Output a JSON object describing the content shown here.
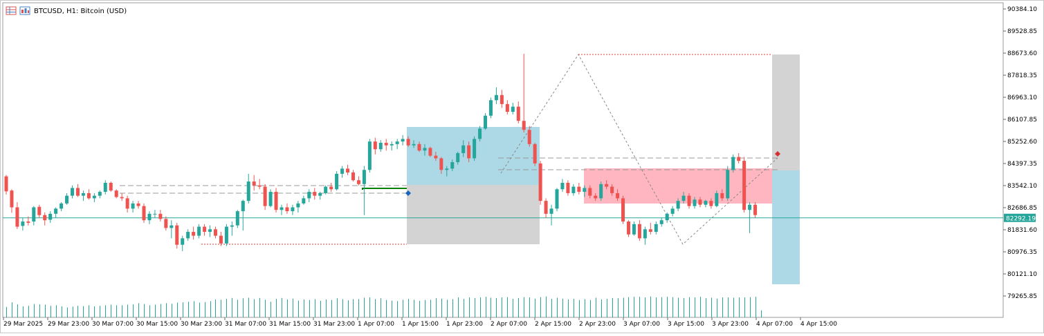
{
  "header": {
    "symbol": "BTCUSD, H1:  Bitcoin (USD)",
    "icons": [
      "table-icon",
      "chart-icon"
    ]
  },
  "colors": {
    "bull": "#26a69a",
    "bear": "#ef5350",
    "volume": "#26a69a",
    "price_line": "#26a69a",
    "blue_zone": "#add8e6",
    "grey_zone": "#d3d3d3",
    "pink_zone": "#ffb6c1",
    "red_dotted": "#e53935",
    "structure_line": "#888888",
    "green_segment": "#008000"
  },
  "chart_data": {
    "type": "candlestick",
    "symbol": "BTCUSD",
    "timeframe": "H1",
    "ylim": [
      78838,
      90811
    ],
    "y_ticks": [
      "90384.10",
      "89528.85",
      "88673.60",
      "87818.35",
      "86963.10",
      "86107.85",
      "85252.60",
      "84397.35",
      "83542.10",
      "82686.85",
      "81831.60",
      "80976.35",
      "80121.10",
      "79265.85"
    ],
    "x_ticks": [
      "29 Mar 2025",
      "29 Mar 23:00",
      "30 Mar 07:00",
      "30 Mar 15:00",
      "30 Mar 23:00",
      "31 Mar 07:00",
      "31 Mar 15:00",
      "31 Mar 23:00",
      "1 Apr 07:00",
      "1 Apr 15:00",
      "1 Apr 23:00",
      "2 Apr 07:00",
      "2 Apr 15:00",
      "2 Apr 23:00",
      "3 Apr 07:00",
      "3 Apr 15:00",
      "3 Apr 23:00",
      "4 Apr 07:00",
      "4 Apr 15:00"
    ],
    "current_price": "82292.19",
    "candles": [
      [
        83900,
        83957,
        83198,
        83319
      ],
      [
        83350,
        83400,
        82488,
        82700
      ],
      [
        82700,
        82900,
        81857,
        81950
      ],
      [
        81980,
        82300,
        81800,
        82150
      ],
      [
        82150,
        82350,
        82000,
        82100
      ],
      [
        82150,
        82750,
        82000,
        82700
      ],
      [
        82720,
        82800,
        82300,
        82400
      ],
      [
        82400,
        82500,
        82000,
        82200
      ],
      [
        82220,
        82550,
        82100,
        82450
      ],
      [
        82450,
        82700,
        82300,
        82650
      ],
      [
        82650,
        82900,
        82550,
        82850
      ],
      [
        82850,
        83250,
        82800,
        83150
      ],
      [
        83150,
        83550,
        83050,
        83450
      ],
      [
        83450,
        83600,
        83100,
        83150
      ],
      [
        83150,
        83350,
        82950,
        83250
      ],
      [
        83250,
        83400,
        83000,
        83050
      ],
      [
        83050,
        83250,
        82900,
        83150
      ],
      [
        83150,
        83350,
        83050,
        83300
      ],
      [
        83300,
        83750,
        83200,
        83650
      ],
      [
        83650,
        83700,
        83300,
        83350
      ],
      [
        83350,
        83400,
        83050,
        83100
      ],
      [
        83100,
        83250,
        82950,
        83050
      ],
      [
        83050,
        83150,
        82500,
        82650
      ],
      [
        82650,
        82950,
        82500,
        82850
      ],
      [
        82850,
        82950,
        82650,
        82750
      ],
      [
        82750,
        82850,
        82100,
        82200
      ],
      [
        82200,
        82550,
        82050,
        82450
      ],
      [
        82450,
        82600,
        82300,
        82450
      ],
      [
        82450,
        82600,
        82150,
        82250
      ],
      [
        82250,
        82350,
        81800,
        81900
      ],
      [
        81900,
        82200,
        81500,
        82000
      ],
      [
        82000,
        82100,
        81100,
        81250
      ],
      [
        81250,
        81600,
        81000,
        81500
      ],
      [
        81500,
        81850,
        81400,
        81750
      ],
      [
        81750,
        81950,
        81450,
        81600
      ],
      [
        81600,
        82050,
        81500,
        81950
      ],
      [
        81950,
        82050,
        81600,
        81750
      ],
      [
        81750,
        82000,
        81550,
        81850
      ],
      [
        81850,
        81950,
        81500,
        81600
      ],
      [
        81600,
        81750,
        81200,
        81300
      ],
      [
        81300,
        82050,
        81200,
        81950
      ],
      [
        81950,
        82150,
        81600,
        82000
      ],
      [
        82000,
        82600,
        81900,
        82550
      ],
      [
        82550,
        83000,
        81800,
        82950
      ],
      [
        82950,
        84000,
        82850,
        83700
      ],
      [
        83700,
        83950,
        83350,
        83550
      ],
      [
        83550,
        83800,
        83400,
        83500
      ],
      [
        83500,
        83600,
        82600,
        82750
      ],
      [
        82750,
        83400,
        82700,
        83300
      ],
      [
        83300,
        83450,
        82500,
        82600
      ],
      [
        82600,
        82800,
        82400,
        82700
      ],
      [
        82700,
        82850,
        82450,
        82550
      ],
      [
        82550,
        82800,
        82400,
        82700
      ],
      [
        82700,
        82950,
        82500,
        82850
      ],
      [
        82850,
        83150,
        82800,
        83050
      ],
      [
        83050,
        83400,
        82900,
        83300
      ],
      [
        83300,
        83450,
        83000,
        83150
      ],
      [
        83150,
        83300,
        83000,
        83250
      ],
      [
        83250,
        83550,
        83200,
        83500
      ],
      [
        83500,
        83650,
        83300,
        83400
      ],
      [
        83400,
        84100,
        83350,
        84000
      ],
      [
        84000,
        84300,
        83850,
        84200
      ],
      [
        84200,
        84350,
        83950,
        84050
      ],
      [
        84050,
        84150,
        83700,
        83750
      ],
      [
        83750,
        83900,
        83550,
        83600
      ],
      [
        83600,
        84300,
        82400,
        84150
      ],
      [
        84150,
        85350,
        84050,
        85250
      ],
      [
        85250,
        85400,
        84750,
        84950
      ],
      [
        84950,
        85300,
        84850,
        85200
      ],
      [
        85200,
        85350,
        84900,
        85100
      ],
      [
        85100,
        85250,
        84900,
        85150
      ],
      [
        85150,
        85350,
        84950,
        85250
      ],
      [
        85250,
        85500,
        85100,
        85350
      ],
      [
        85350,
        85450,
        85050,
        85100
      ],
      [
        85100,
        85300,
        85000,
        85150
      ],
      [
        85150,
        85250,
        84850,
        84900
      ],
      [
        84900,
        85150,
        84700,
        85000
      ],
      [
        85000,
        85050,
        84650,
        84700
      ],
      [
        84700,
        84850,
        84500,
        84600
      ],
      [
        84600,
        84650,
        84000,
        84150
      ],
      [
        84150,
        84300,
        83900,
        84200
      ],
      [
        84200,
        84550,
        84100,
        84450
      ],
      [
        84450,
        84850,
        84350,
        84800
      ],
      [
        84800,
        85300,
        84650,
        85100
      ],
      [
        85100,
        85250,
        84450,
        84600
      ],
      [
        84600,
        85450,
        84500,
        85350
      ],
      [
        85350,
        85850,
        85250,
        85750
      ],
      [
        85750,
        86350,
        85700,
        86250
      ],
      [
        86250,
        86950,
        86150,
        86850
      ],
      [
        86850,
        87350,
        86700,
        87050
      ],
      [
        87050,
        87250,
        86550,
        86700
      ],
      [
        86700,
        86850,
        86300,
        86400
      ],
      [
        86400,
        86750,
        86300,
        86600
      ],
      [
        86600,
        86800,
        85950,
        86050
      ],
      [
        86050,
        88650,
        85600,
        85700
      ],
      [
        85700,
        85850,
        85050,
        85150
      ],
      [
        85150,
        85200,
        84300,
        84400
      ],
      [
        84400,
        84500,
        82800,
        82950
      ],
      [
        82950,
        83050,
        82300,
        82450
      ],
      [
        82450,
        82800,
        82000,
        82650
      ],
      [
        82650,
        83450,
        82550,
        83400
      ],
      [
        83400,
        83800,
        83300,
        83650
      ],
      [
        83650,
        83750,
        83150,
        83250
      ],
      [
        83250,
        83600,
        83150,
        83500
      ],
      [
        83500,
        83650,
        83200,
        83300
      ],
      [
        83300,
        83550,
        83100,
        83450
      ],
      [
        83450,
        83550,
        83050,
        83150
      ],
      [
        83150,
        83250,
        82950,
        83050
      ],
      [
        83050,
        83700,
        82950,
        83600
      ],
      [
        83600,
        83750,
        83400,
        83500
      ],
      [
        83500,
        83600,
        83150,
        83250
      ],
      [
        83250,
        83400,
        82950,
        83050
      ],
      [
        83050,
        83150,
        82050,
        82150
      ],
      [
        82150,
        82200,
        81550,
        81650
      ],
      [
        81650,
        82150,
        81600,
        82050
      ],
      [
        82050,
        82200,
        81400,
        81500
      ],
      [
        81500,
        81950,
        81250,
        81850
      ],
      [
        81850,
        82100,
        81650,
        81750
      ],
      [
        81750,
        82150,
        81650,
        82050
      ],
      [
        82050,
        82300,
        81950,
        82200
      ],
      [
        82200,
        82500,
        82100,
        82450
      ],
      [
        82450,
        82750,
        82350,
        82650
      ],
      [
        82650,
        83050,
        82550,
        82950
      ],
      [
        82950,
        83300,
        82850,
        83150
      ],
      [
        83150,
        83250,
        82650,
        82750
      ],
      [
        82750,
        83100,
        82650,
        83000
      ],
      [
        83000,
        83100,
        82700,
        82800
      ],
      [
        82800,
        83000,
        82700,
        82950
      ],
      [
        82950,
        83050,
        82650,
        82750
      ],
      [
        82750,
        83350,
        82700,
        83250
      ],
      [
        83250,
        83400,
        82950,
        83050
      ],
      [
        83050,
        84300,
        82950,
        84150
      ],
      [
        84150,
        84750,
        84050,
        84650
      ],
      [
        84650,
        84800,
        84400,
        84500
      ],
      [
        84500,
        84650,
        82500,
        82600
      ],
      [
        82600,
        82900,
        81700,
        82800
      ],
      [
        82800,
        82900,
        82300,
        82400
      ]
    ],
    "volumes": [
      0.36,
      0.52,
      0.45,
      0.38,
      0.4,
      0.46,
      0.45,
      0.44,
      0.4,
      0.42,
      0.38,
      0.34,
      0.37,
      0.4,
      0.39,
      0.42,
      0.38,
      0.4,
      0.42,
      0.44,
      0.42,
      0.42,
      0.44,
      0.45,
      0.49,
      0.46,
      0.42,
      0.44,
      0.46,
      0.49,
      0.47,
      0.51,
      0.52,
      0.54,
      0.56,
      0.51,
      0.53,
      0.56,
      0.62,
      0.61,
      0.64,
      0.67,
      0.61,
      0.66,
      0.68,
      0.63,
      0.67,
      0.61,
      0.54,
      0.64,
      0.67,
      0.62,
      0.65,
      0.58,
      0.62,
      0.6,
      0.63,
      0.57,
      0.62,
      0.6,
      0.66,
      0.63,
      0.59,
      0.63,
      0.63,
      0.68,
      0.69,
      0.63,
      0.66,
      0.6,
      0.58,
      0.56,
      0.61,
      0.64,
      0.61,
      0.57,
      0.6,
      0.61,
      0.66,
      0.65,
      0.61,
      0.63,
      0.69,
      0.64,
      0.69,
      0.67,
      0.69,
      0.71,
      0.68,
      0.67,
      0.69,
      0.7,
      0.64,
      0.67,
      0.7,
      0.69,
      0.65,
      0.7,
      0.72,
      0.64,
      0.68,
      0.65,
      0.62,
      0.64,
      0.6,
      0.63,
      0.6,
      0.68,
      0.62,
      0.64,
      0.67,
      0.66,
      0.68,
      0.7,
      0.71,
      0.71,
      0.69,
      0.72,
      0.69,
      0.7,
      0.71,
      0.7,
      0.68,
      0.67,
      0.7,
      0.69,
      0.71,
      0.66,
      0.68,
      0.65,
      0.69,
      0.69,
      0.68,
      0.69,
      0.69,
      0.7,
      0.71,
      0.24
    ]
  }
}
